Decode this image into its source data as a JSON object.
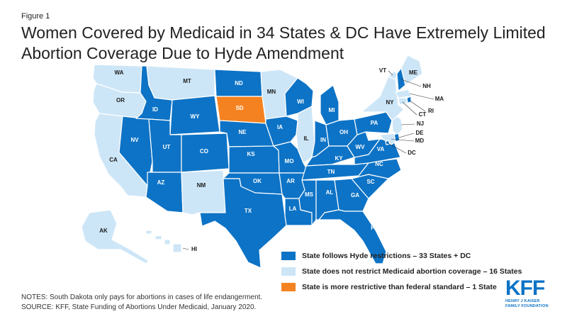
{
  "figure_label": "Figure 1",
  "title": "Women Covered by Medicaid in 34 States & DC Have Extremely Limited Abortion Coverage Due to Hyde Amendment",
  "colors": {
    "hyde": "#0d73c6",
    "no_restrict": "#cde6f7",
    "more_restrictive": "#f58220",
    "border": "#ffffff",
    "label_light": "#ffffff",
    "label_dark": "#1a1a1a"
  },
  "legend": [
    {
      "label": "State follows Hyde restrictions – 33 States + DC",
      "category": "hyde"
    },
    {
      "label": "State does not restrict Medicaid abortion coverage – 16 States",
      "category": "no_restrict"
    },
    {
      "label": "State is more restrictive than federal standard – 1 State",
      "category": "more_restrictive"
    }
  ],
  "states": [
    {
      "abbr": "WA",
      "category": "no_restrict"
    },
    {
      "abbr": "OR",
      "category": "no_restrict"
    },
    {
      "abbr": "CA",
      "category": "no_restrict"
    },
    {
      "abbr": "NV",
      "category": "hyde"
    },
    {
      "abbr": "ID",
      "category": "hyde"
    },
    {
      "abbr": "MT",
      "category": "no_restrict"
    },
    {
      "abbr": "WY",
      "category": "hyde"
    },
    {
      "abbr": "UT",
      "category": "hyde"
    },
    {
      "abbr": "CO",
      "category": "hyde"
    },
    {
      "abbr": "AZ",
      "category": "hyde"
    },
    {
      "abbr": "NM",
      "category": "no_restrict"
    },
    {
      "abbr": "ND",
      "category": "hyde"
    },
    {
      "abbr": "SD",
      "category": "more_restrictive"
    },
    {
      "abbr": "NE",
      "category": "hyde"
    },
    {
      "abbr": "KS",
      "category": "hyde"
    },
    {
      "abbr": "OK",
      "category": "hyde"
    },
    {
      "abbr": "TX",
      "category": "hyde"
    },
    {
      "abbr": "MN",
      "category": "no_restrict"
    },
    {
      "abbr": "IA",
      "category": "hyde"
    },
    {
      "abbr": "MO",
      "category": "hyde"
    },
    {
      "abbr": "AR",
      "category": "hyde"
    },
    {
      "abbr": "LA",
      "category": "hyde"
    },
    {
      "abbr": "WI",
      "category": "hyde"
    },
    {
      "abbr": "IL",
      "category": "no_restrict"
    },
    {
      "abbr": "MI",
      "category": "hyde"
    },
    {
      "abbr": "IN",
      "category": "hyde"
    },
    {
      "abbr": "OH",
      "category": "hyde"
    },
    {
      "abbr": "KY",
      "category": "hyde"
    },
    {
      "abbr": "TN",
      "category": "hyde"
    },
    {
      "abbr": "MS",
      "category": "hyde"
    },
    {
      "abbr": "AL",
      "category": "hyde"
    },
    {
      "abbr": "GA",
      "category": "hyde"
    },
    {
      "abbr": "FL",
      "category": "hyde"
    },
    {
      "abbr": "SC",
      "category": "hyde"
    },
    {
      "abbr": "NC",
      "category": "hyde"
    },
    {
      "abbr": "VA",
      "category": "hyde"
    },
    {
      "abbr": "WV",
      "category": "hyde"
    },
    {
      "abbr": "PA",
      "category": "hyde"
    },
    {
      "abbr": "NY",
      "category": "no_restrict"
    },
    {
      "abbr": "VT",
      "category": "no_restrict"
    },
    {
      "abbr": "NH",
      "category": "hyde"
    },
    {
      "abbr": "ME",
      "category": "no_restrict"
    },
    {
      "abbr": "MA",
      "category": "no_restrict"
    },
    {
      "abbr": "RI",
      "category": "hyde"
    },
    {
      "abbr": "CT",
      "category": "no_restrict"
    },
    {
      "abbr": "NJ",
      "category": "no_restrict"
    },
    {
      "abbr": "DE",
      "category": "hyde"
    },
    {
      "abbr": "MD",
      "category": "no_restrict"
    },
    {
      "abbr": "DC",
      "category": "hyde"
    },
    {
      "abbr": "AK",
      "category": "no_restrict"
    },
    {
      "abbr": "HI",
      "category": "no_restrict"
    }
  ],
  "notes": [
    "NOTES: South Dakota only pays for abortions in cases of life endangerment.",
    "SOURCE: KFF, State Funding of Abortions Under Medicaid, January 2020."
  ],
  "logo": {
    "main": "KFF",
    "sub": [
      "HENRY J KAISER",
      "FAMILY FOUNDATION"
    ]
  }
}
